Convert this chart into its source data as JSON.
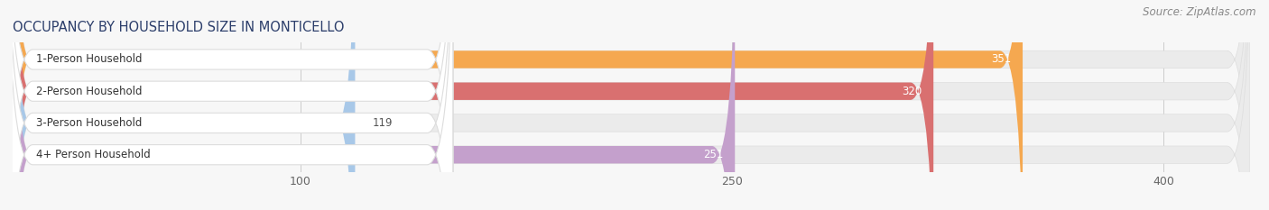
{
  "title": "OCCUPANCY BY HOUSEHOLD SIZE IN MONTICELLO",
  "source": "Source: ZipAtlas.com",
  "categories": [
    "1-Person Household",
    "2-Person Household",
    "3-Person Household",
    "4+ Person Household"
  ],
  "values": [
    351,
    320,
    119,
    251
  ],
  "bar_colors": [
    "#f5a850",
    "#d97070",
    "#a8c8e8",
    "#c4a0cc"
  ],
  "xlim_max": 430,
  "xticks": [
    100,
    250,
    400
  ],
  "title_fontsize": 10.5,
  "source_fontsize": 8.5,
  "label_fontsize": 8.5,
  "value_fontsize": 8.5,
  "tick_fontsize": 9,
  "bar_height": 0.55,
  "figsize": [
    14.06,
    2.33
  ],
  "dpi": 100,
  "bg_color": "#f7f7f7",
  "bar_bg_color": "#ebebeb"
}
